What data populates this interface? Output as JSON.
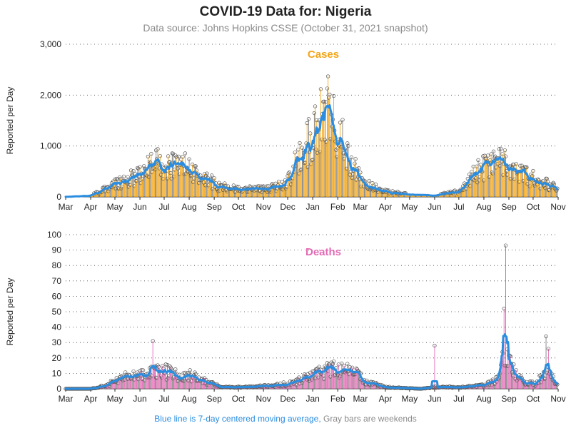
{
  "title": "COVID-19 Data for: Nigeria",
  "subtitle": "Data source: Johns Hopkins CSSE (October 31, 2021 snapshot)",
  "footnote": {
    "blue": "Blue line is 7-day centered moving average,",
    "gray": "Gray bars are weekends"
  },
  "colors": {
    "cases": "#f2a516",
    "deaths": "#e36bb5",
    "moving_average": "#2b8de0",
    "weekend": "#7a7a7a",
    "grid": "#444444"
  },
  "chart_data": [
    {
      "type": "bar",
      "title": "Cases",
      "ylabel": "Reported per Day",
      "xlabel": "",
      "ylim": [
        0,
        3000
      ],
      "yticks": [
        0,
        1000,
        2000,
        3000
      ],
      "ytick_labels": [
        "0",
        "1,000",
        "2,000",
        "3,000"
      ],
      "grid": true,
      "x_tick_labels": [
        "Mar",
        "Apr",
        "May",
        "Jun",
        "Jul",
        "Aug",
        "Sep",
        "Oct",
        "Nov",
        "Dec",
        "Jan",
        "Feb",
        "Mar",
        "Apr",
        "May",
        "Jun",
        "Jul",
        "Aug",
        "Sep",
        "Oct",
        "Nov"
      ],
      "x_start": "2020-03-01",
      "x_end": "2021-11-01",
      "series": [
        {
          "kind": "bars",
          "values_by_month_keypoints": [
            [
              "2020-03-01",
              0
            ],
            [
              "2020-04-01",
              20
            ],
            [
              "2020-04-20",
              150
            ],
            [
              "2020-05-10",
              300
            ],
            [
              "2020-06-01",
              400
            ],
            [
              "2020-06-20",
              650
            ],
            [
              "2020-07-05",
              580
            ],
            [
              "2020-07-25",
              600
            ],
            [
              "2020-08-10",
              430
            ],
            [
              "2020-08-25",
              350
            ],
            [
              "2020-09-05",
              200
            ],
            [
              "2020-10-01",
              150
            ],
            [
              "2020-10-20",
              140
            ],
            [
              "2020-11-15",
              180
            ],
            [
              "2020-12-01",
              300
            ],
            [
              "2020-12-20",
              900
            ],
            [
              "2021-01-05",
              1300
            ],
            [
              "2021-01-20",
              1600
            ],
            [
              "2021-02-05",
              1100
            ],
            [
              "2021-02-20",
              600
            ],
            [
              "2021-03-05",
              250
            ],
            [
              "2021-04-01",
              100
            ],
            [
              "2021-05-01",
              40
            ],
            [
              "2021-06-01",
              30
            ],
            [
              "2021-07-01",
              100
            ],
            [
              "2021-07-25",
              500
            ],
            [
              "2021-08-20",
              700
            ],
            [
              "2021-09-10",
              450
            ],
            [
              "2021-10-01",
              350
            ],
            [
              "2021-10-25",
              200
            ],
            [
              "2021-10-31",
              120
            ]
          ]
        },
        {
          "kind": "moving_average",
          "name": "7-day centered moving average"
        }
      ]
    },
    {
      "type": "bar",
      "title": "Deaths",
      "ylabel": "Reported per Day",
      "xlabel": "",
      "ylim": [
        0,
        100
      ],
      "yticks": [
        0,
        10,
        20,
        30,
        40,
        50,
        60,
        70,
        80,
        90,
        100
      ],
      "ytick_labels": [
        "0",
        "10",
        "20",
        "30",
        "40",
        "50",
        "60",
        "70",
        "80",
        "90",
        "100"
      ],
      "grid": true,
      "x_tick_labels": [
        "Mar",
        "Apr",
        "May",
        "Jun",
        "Jul",
        "Aug",
        "Sep",
        "Oct",
        "Nov",
        "Dec",
        "Jan",
        "Feb",
        "Mar",
        "Apr",
        "May",
        "Jun",
        "Jul",
        "Aug",
        "Sep",
        "Oct",
        "Nov"
      ],
      "x_start": "2020-03-01",
      "x_end": "2021-11-01",
      "series": [
        {
          "kind": "bars",
          "values_by_month_keypoints": [
            [
              "2020-03-01",
              0
            ],
            [
              "2020-04-01",
              0
            ],
            [
              "2020-04-20",
              2
            ],
            [
              "2020-05-10",
              7
            ],
            [
              "2020-06-01",
              8
            ],
            [
              "2020-06-25",
              12
            ],
            [
              "2020-07-15",
              9
            ],
            [
              "2020-08-05",
              8
            ],
            [
              "2020-08-25",
              4
            ],
            [
              "2020-09-10",
              1
            ],
            [
              "2020-10-10",
              1
            ],
            [
              "2020-11-15",
              2
            ],
            [
              "2020-12-10",
              4
            ],
            [
              "2021-01-05",
              9
            ],
            [
              "2021-01-25",
              13
            ],
            [
              "2021-02-10",
              12
            ],
            [
              "2021-02-25",
              9
            ],
            [
              "2021-03-10",
              4
            ],
            [
              "2021-04-01",
              1
            ],
            [
              "2021-05-15",
              0
            ],
            [
              "2021-06-01",
              1
            ],
            [
              "2021-07-01",
              1
            ],
            [
              "2021-08-01",
              2
            ],
            [
              "2021-08-20",
              6
            ],
            [
              "2021-08-28",
              26
            ],
            [
              "2021-09-05",
              12
            ],
            [
              "2021-09-20",
              4
            ],
            [
              "2021-10-05",
              3
            ],
            [
              "2021-10-18",
              12
            ],
            [
              "2021-10-31",
              2
            ]
          ]
        },
        {
          "kind": "moving_average",
          "name": "7-day centered moving average"
        }
      ],
      "spikes": [
        [
          "2021-08-28",
          93
        ],
        [
          "2021-08-26",
          52
        ],
        [
          "2021-10-17",
          34
        ],
        [
          "2021-10-20",
          26
        ],
        [
          "2020-06-17",
          31
        ],
        [
          "2021-06-01",
          28
        ]
      ]
    }
  ]
}
